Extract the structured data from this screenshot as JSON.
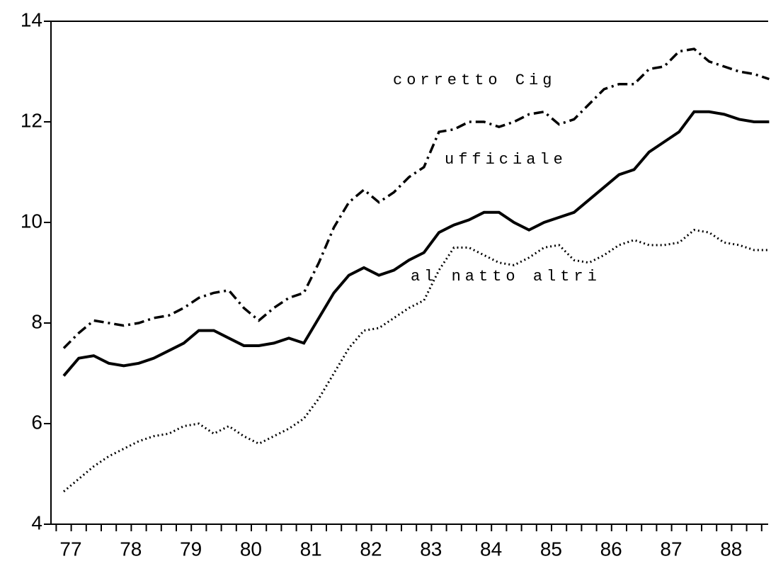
{
  "chart_data": {
    "type": "line",
    "categories": [
      "77",
      null,
      null,
      null,
      "78",
      null,
      null,
      null,
      "79",
      null,
      null,
      null,
      "80",
      null,
      null,
      null,
      "81",
      null,
      null,
      null,
      "82",
      null,
      null,
      null,
      "83",
      null,
      null,
      null,
      "84",
      null,
      null,
      null,
      "85",
      null,
      null,
      null,
      "86",
      null,
      null,
      null,
      "87",
      null,
      null,
      null,
      "88",
      null,
      null,
      null
    ],
    "series": [
      {
        "name": "corretto Cig",
        "color": "#000000",
        "dash": "dashdot",
        "values": [
          7.5,
          7.8,
          8.05,
          8.0,
          7.95,
          8.0,
          8.1,
          8.15,
          8.3,
          8.5,
          8.6,
          8.65,
          8.3,
          8.05,
          8.3,
          8.5,
          8.6,
          9.2,
          9.9,
          10.4,
          10.65,
          10.4,
          10.6,
          10.9,
          11.1,
          11.8,
          11.85,
          12.0,
          12.0,
          11.9,
          12.0,
          12.15,
          12.2,
          11.95,
          12.05,
          12.35,
          12.65,
          12.75,
          12.75,
          13.05,
          13.1,
          13.4,
          13.45,
          13.2,
          13.1,
          13.0,
          12.95,
          12.85
        ]
      },
      {
        "name": "ufficiale",
        "color": "#000000",
        "dash": "solid",
        "values": [
          6.95,
          7.3,
          7.35,
          7.2,
          7.15,
          7.2,
          7.3,
          7.45,
          7.6,
          7.85,
          7.85,
          7.7,
          7.55,
          7.55,
          7.6,
          7.7,
          7.6,
          8.1,
          8.6,
          8.95,
          9.1,
          8.95,
          9.05,
          9.25,
          9.4,
          9.8,
          9.95,
          10.05,
          10.2,
          10.2,
          10.0,
          9.85,
          10.0,
          10.1,
          10.2,
          10.45,
          10.7,
          10.95,
          11.05,
          11.4,
          11.6,
          11.8,
          12.2,
          12.2,
          12.15,
          12.05,
          12.0,
          12.0
        ]
      },
      {
        "name": "al natto altri",
        "color": "#000000",
        "dash": "dotted",
        "values": [
          4.65,
          4.9,
          5.15,
          5.35,
          5.5,
          5.65,
          5.75,
          5.8,
          5.95,
          6.0,
          5.8,
          5.95,
          5.75,
          5.6,
          5.75,
          5.9,
          6.1,
          6.5,
          7.0,
          7.5,
          7.85,
          7.9,
          8.1,
          8.3,
          8.45,
          9.05,
          9.5,
          9.5,
          9.35,
          9.2,
          9.15,
          9.3,
          9.5,
          9.55,
          9.25,
          9.2,
          9.35,
          9.55,
          9.65,
          9.55,
          9.55,
          9.6,
          9.85,
          9.8,
          9.6,
          9.55,
          9.45,
          9.45
        ]
      }
    ],
    "ylim": [
      4,
      14
    ],
    "yticks": [
      4,
      6,
      8,
      10,
      12,
      14
    ]
  }
}
